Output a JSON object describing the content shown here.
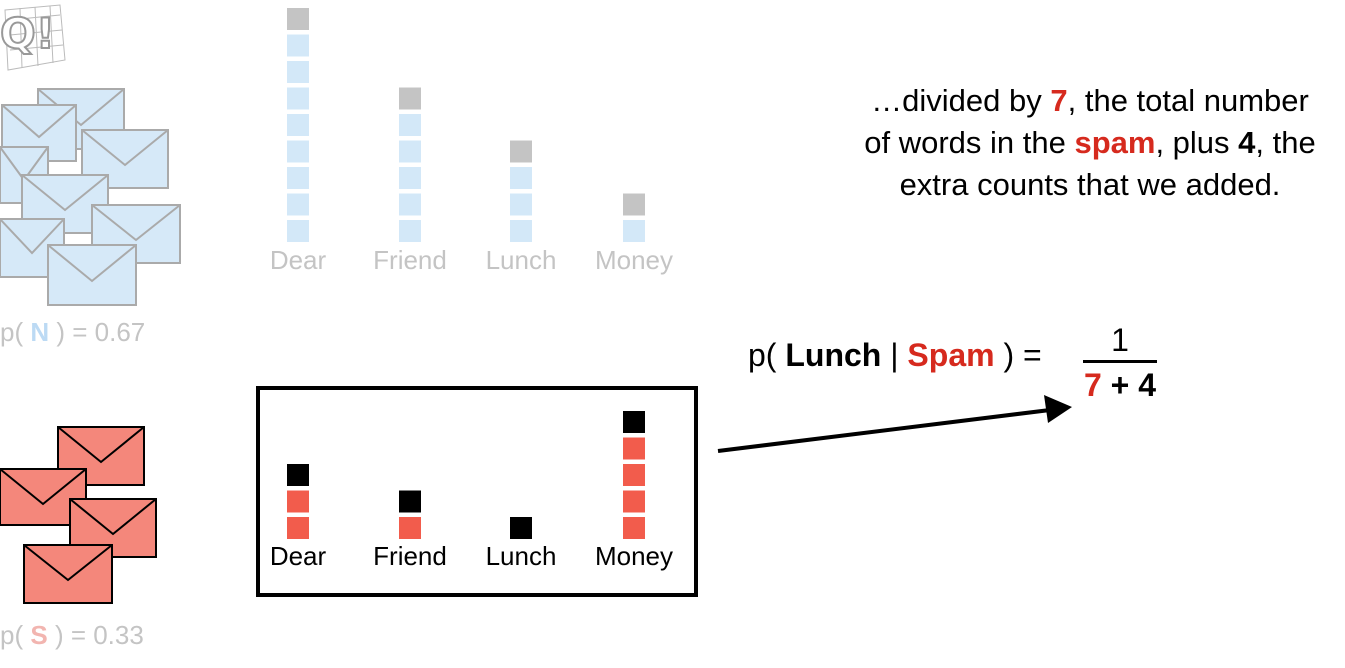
{
  "normal": {
    "prob_label_prefix": "p(",
    "prob_label_letter": "N",
    "prob_label_suffix": ") = 0.67",
    "color": "#d3e8f8",
    "categories": [
      "Dear",
      "Friend",
      "Lunch",
      "Money"
    ],
    "counts": [
      8,
      5,
      3,
      1
    ],
    "extra_counts": [
      1,
      1,
      1,
      1
    ]
  },
  "spam": {
    "prob_label_prefix": "p(",
    "prob_label_letter": "S",
    "prob_label_suffix": ") = 0.33",
    "color": "#f25c4c",
    "categories": [
      "Dear",
      "Friend",
      "Lunch",
      "Money"
    ],
    "counts": [
      2,
      1,
      0,
      4
    ],
    "extra_counts": [
      1,
      1,
      1,
      1
    ]
  },
  "explanation": {
    "p1": "…divided by ",
    "n7": "7",
    "p2": ", the total number of words in the ",
    "spam": "spam",
    "p3": ", plus ",
    "n4": "4",
    "p4": ", the extra counts that we added."
  },
  "formula": {
    "prefix": "p( ",
    "word": "Lunch",
    "sep": " | ",
    "cls": "Spam",
    "suffix": " ) =",
    "numerator": "1",
    "den_a": "7",
    "den_op": " + ",
    "den_b": "4"
  },
  "colors": {
    "normal_bar": "#d3e8f8",
    "normal_extra": "#c4c4c4",
    "spam_bar": "#f25c4c",
    "spam_extra": "#000000",
    "highlight_red": "#d62a1e",
    "envelope_blue": "#d3e8f8",
    "envelope_red": "#f4877b"
  }
}
